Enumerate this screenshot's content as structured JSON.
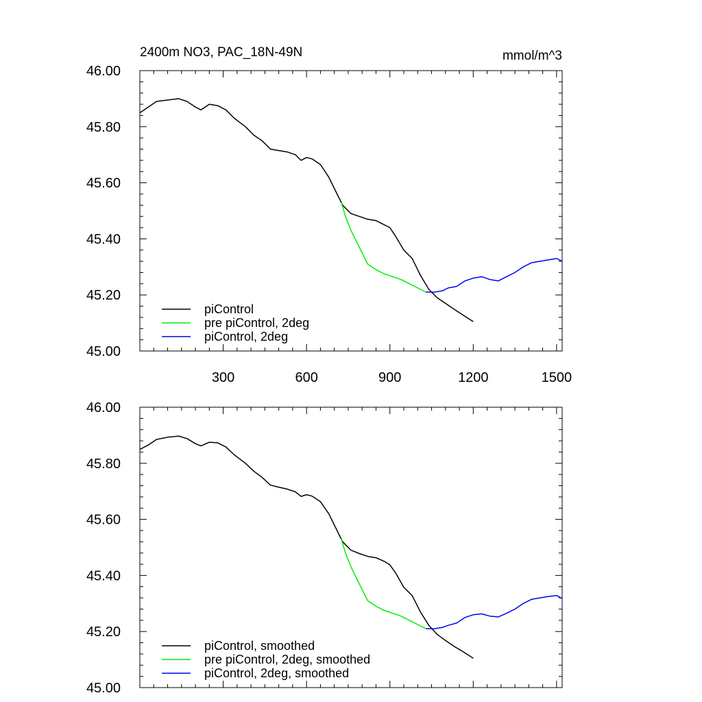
{
  "header": {
    "title": "2400m NO3, PAC_18N-49N",
    "units": "mmol/m^3"
  },
  "colors": {
    "piControl": "#000000",
    "pre_piControl_2deg": "#00ee00",
    "piControl_2deg": "#0000ee"
  },
  "chart_data": [
    {
      "type": "line",
      "xlim": [
        0,
        1520
      ],
      "ylim": [
        45.0,
        46.0
      ],
      "x_ticks": [
        300,
        600,
        900,
        1200,
        1500
      ],
      "x_tick_labels": [
        "300",
        "600",
        "900",
        "1200",
        "1500"
      ],
      "y_ticks": [
        45.0,
        45.2,
        45.4,
        45.6,
        45.8,
        46.0
      ],
      "y_tick_labels": [
        "45.00",
        "45.20",
        "45.40",
        "45.60",
        "45.80",
        "46.00"
      ],
      "legend_placement": "bottom-left",
      "series": [
        {
          "name": "piControl",
          "color_key": "piControl",
          "points": [
            [
              1,
              45.85
            ],
            [
              30,
              45.87
            ],
            [
              60,
              45.89
            ],
            [
              100,
              45.895
            ],
            [
              140,
              45.9
            ],
            [
              170,
              45.89
            ],
            [
              200,
              45.87
            ],
            [
              220,
              45.86
            ],
            [
              250,
              45.88
            ],
            [
              280,
              45.875
            ],
            [
              310,
              45.86
            ],
            [
              340,
              45.83
            ],
            [
              380,
              45.8
            ],
            [
              410,
              45.77
            ],
            [
              440,
              45.75
            ],
            [
              470,
              45.72
            ],
            [
              500,
              45.715
            ],
            [
              530,
              45.71
            ],
            [
              560,
              45.7
            ],
            [
              580,
              45.68
            ],
            [
              600,
              45.69
            ],
            [
              620,
              45.685
            ],
            [
              650,
              45.665
            ],
            [
              680,
              45.62
            ],
            [
              710,
              45.56
            ],
            [
              730,
              45.52
            ],
            [
              760,
              45.49
            ],
            [
              790,
              45.48
            ],
            [
              820,
              45.47
            ],
            [
              850,
              45.465
            ],
            [
              880,
              45.45
            ],
            [
              900,
              45.44
            ],
            [
              920,
              45.41
            ],
            [
              950,
              45.36
            ],
            [
              980,
              45.33
            ],
            [
              1010,
              45.27
            ],
            [
              1040,
              45.22
            ],
            [
              1070,
              45.19
            ],
            [
              1100,
              45.17
            ],
            [
              1130,
              45.15
            ],
            [
              1160,
              45.13
            ],
            [
              1200,
              45.105
            ]
          ]
        },
        {
          "name": "pre piControl, 2deg",
          "color_key": "pre_piControl_2deg",
          "points": [
            [
              725,
              45.53
            ],
            [
              740,
              45.48
            ],
            [
              760,
              45.43
            ],
            [
              780,
              45.39
            ],
            [
              800,
              45.35
            ],
            [
              820,
              45.31
            ],
            [
              850,
              45.29
            ],
            [
              880,
              45.275
            ],
            [
              910,
              45.265
            ],
            [
              940,
              45.255
            ],
            [
              970,
              45.24
            ],
            [
              1000,
              45.225
            ],
            [
              1030,
              45.21
            ]
          ]
        },
        {
          "name": "piControl, 2deg",
          "color_key": "piControl_2deg",
          "points": [
            [
              1030,
              45.21
            ],
            [
              1060,
              45.21
            ],
            [
              1090,
              45.215
            ],
            [
              1110,
              45.225
            ],
            [
              1140,
              45.23
            ],
            [
              1170,
              45.25
            ],
            [
              1200,
              45.26
            ],
            [
              1230,
              45.265
            ],
            [
              1260,
              45.255
            ],
            [
              1290,
              45.25
            ],
            [
              1320,
              45.265
            ],
            [
              1350,
              45.28
            ],
            [
              1380,
              45.3
            ],
            [
              1410,
              45.315
            ],
            [
              1440,
              45.32
            ],
            [
              1470,
              45.325
            ],
            [
              1500,
              45.33
            ],
            [
              1520,
              45.32
            ]
          ]
        }
      ]
    },
    {
      "type": "line",
      "xlim": [
        0,
        1520
      ],
      "ylim": [
        45.0,
        46.0
      ],
      "x_ticks": [
        300,
        600,
        900,
        1200,
        1500
      ],
      "y_ticks": [
        45.0,
        45.2,
        45.4,
        45.6,
        45.8,
        46.0
      ],
      "y_tick_labels": [
        "45.00",
        "45.20",
        "45.40",
        "45.60",
        "45.80",
        "46.00"
      ],
      "legend_placement": "bottom-left",
      "series": [
        {
          "name": "piControl, smoothed",
          "color_key": "piControl",
          "points": [
            [
              1,
              45.85
            ],
            [
              30,
              45.865
            ],
            [
              60,
              45.885
            ],
            [
              100,
              45.893
            ],
            [
              140,
              45.897
            ],
            [
              170,
              45.888
            ],
            [
              200,
              45.87
            ],
            [
              220,
              45.862
            ],
            [
              250,
              45.875
            ],
            [
              280,
              45.873
            ],
            [
              310,
              45.858
            ],
            [
              340,
              45.83
            ],
            [
              380,
              45.8
            ],
            [
              410,
              45.772
            ],
            [
              440,
              45.75
            ],
            [
              470,
              45.722
            ],
            [
              500,
              45.715
            ],
            [
              530,
              45.708
            ],
            [
              560,
              45.698
            ],
            [
              580,
              45.682
            ],
            [
              600,
              45.688
            ],
            [
              620,
              45.683
            ],
            [
              650,
              45.663
            ],
            [
              680,
              45.62
            ],
            [
              710,
              45.56
            ],
            [
              730,
              45.52
            ],
            [
              760,
              45.49
            ],
            [
              790,
              45.478
            ],
            [
              820,
              45.468
            ],
            [
              850,
              45.463
            ],
            [
              880,
              45.45
            ],
            [
              900,
              45.438
            ],
            [
              920,
              45.41
            ],
            [
              950,
              45.358
            ],
            [
              980,
              45.328
            ],
            [
              1010,
              45.27
            ],
            [
              1040,
              45.222
            ],
            [
              1070,
              45.19
            ],
            [
              1100,
              45.168
            ],
            [
              1130,
              45.148
            ],
            [
              1160,
              45.13
            ],
            [
              1200,
              45.105
            ]
          ]
        },
        {
          "name": "pre piControl, 2deg, smoothed",
          "color_key": "pre_piControl_2deg",
          "points": [
            [
              725,
              45.53
            ],
            [
              740,
              45.48
            ],
            [
              760,
              45.43
            ],
            [
              780,
              45.39
            ],
            [
              800,
              45.35
            ],
            [
              820,
              45.31
            ],
            [
              850,
              45.29
            ],
            [
              880,
              45.275
            ],
            [
              910,
              45.265
            ],
            [
              940,
              45.255
            ],
            [
              970,
              45.24
            ],
            [
              1000,
              45.225
            ],
            [
              1030,
              45.21
            ]
          ]
        },
        {
          "name": "piControl, 2deg, smoothed",
          "color_key": "piControl_2deg",
          "points": [
            [
              1030,
              45.21
            ],
            [
              1060,
              45.21
            ],
            [
              1090,
              45.215
            ],
            [
              1110,
              45.222
            ],
            [
              1140,
              45.23
            ],
            [
              1170,
              45.25
            ],
            [
              1200,
              45.26
            ],
            [
              1230,
              45.263
            ],
            [
              1260,
              45.255
            ],
            [
              1290,
              45.252
            ],
            [
              1320,
              45.265
            ],
            [
              1350,
              45.28
            ],
            [
              1380,
              45.3
            ],
            [
              1410,
              45.315
            ],
            [
              1440,
              45.32
            ],
            [
              1470,
              45.325
            ],
            [
              1500,
              45.328
            ],
            [
              1520,
              45.318
            ]
          ]
        }
      ]
    }
  ]
}
